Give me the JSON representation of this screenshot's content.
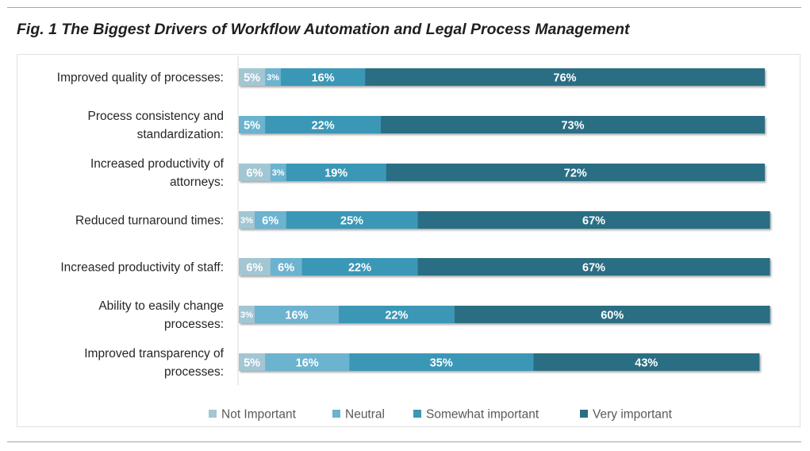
{
  "figure": {
    "title": "Fig. 1 The Biggest Drivers of Workflow Automation and Legal Process Management"
  },
  "chart_data": {
    "type": "bar",
    "orientation": "horizontal",
    "stacked": true,
    "percent_stacked": true,
    "title": "Fig. 1 The Biggest Drivers of Workflow Automation and Legal Process Management",
    "xlabel": "",
    "ylabel": "",
    "xlim": [
      0,
      100
    ],
    "grid": false,
    "legend_position": "bottom",
    "categories": [
      [
        "Improved quality of processes:"
      ],
      [
        "Process consistency and",
        "standardization:"
      ],
      [
        "Increased productivity of",
        "attorneys:"
      ],
      [
        "Reduced turnaround times:"
      ],
      [
        "Increased productivity of staff:"
      ],
      [
        "Ability to easily change",
        "processes:"
      ],
      [
        "Improved transparency of",
        "processes:"
      ]
    ],
    "series": [
      {
        "name": "Not Important",
        "color": "#a3c6d3",
        "values": [
          5,
          0,
          6,
          3,
          6,
          3,
          5
        ]
      },
      {
        "name": "Neutral",
        "color": "#6cb3cf",
        "values": [
          3,
          5,
          3,
          6,
          6,
          16,
          16
        ]
      },
      {
        "name": "Somewhat important",
        "color": "#3b97b6",
        "values": [
          16,
          22,
          19,
          25,
          22,
          22,
          35
        ]
      },
      {
        "name": "Very important",
        "color": "#2b6e84",
        "values": [
          76,
          73,
          72,
          67,
          67,
          60,
          43
        ]
      }
    ]
  }
}
